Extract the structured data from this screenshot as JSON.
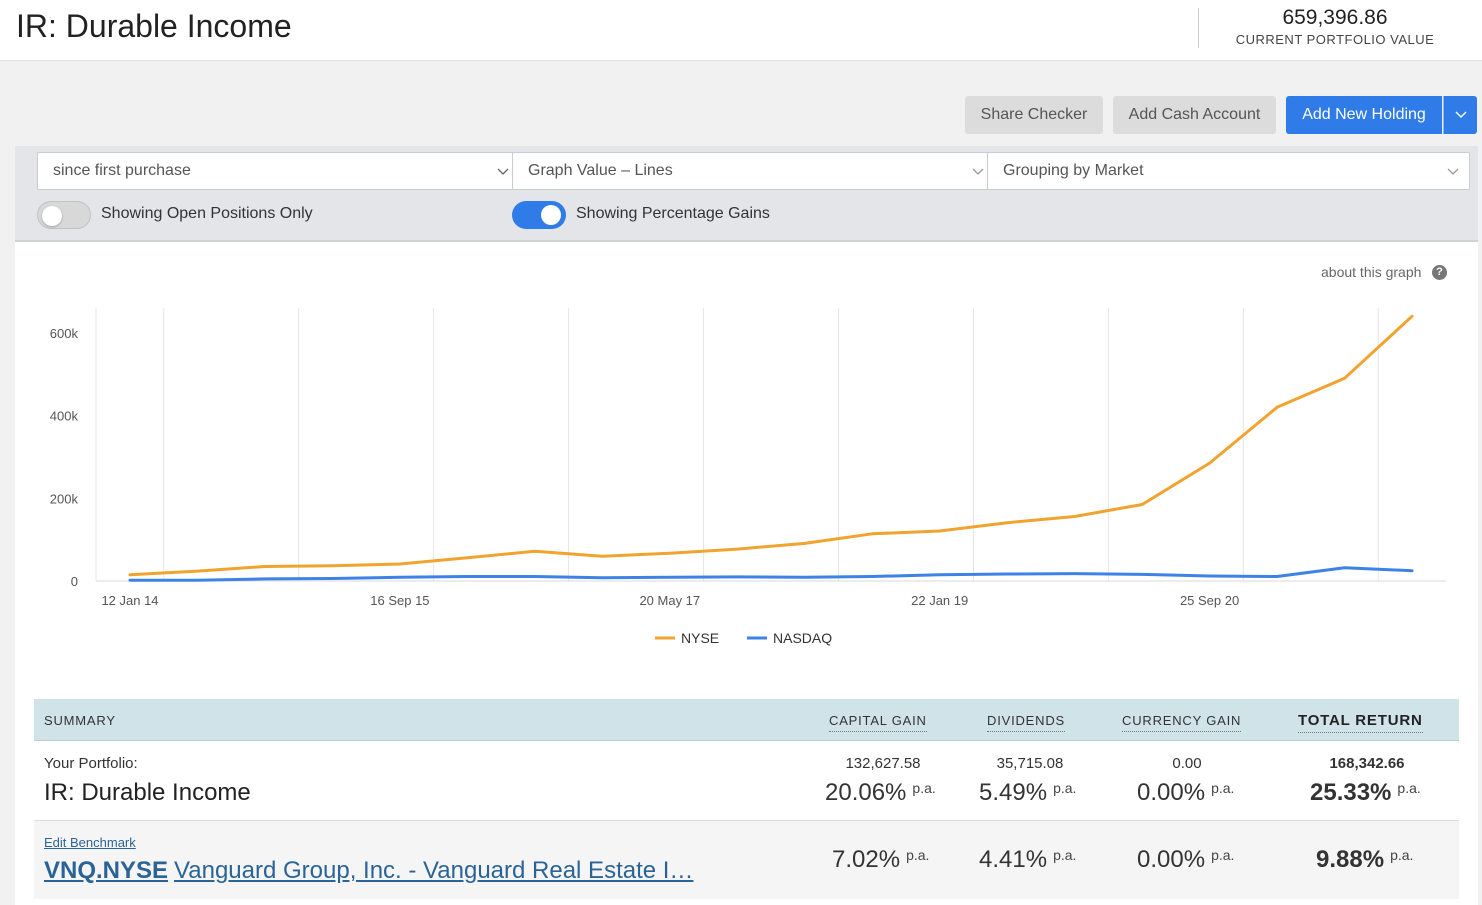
{
  "header": {
    "title": "IR: Durable Income",
    "portfolio_value": "659,396.86",
    "portfolio_value_label": "CURRENT PORTFOLIO VALUE"
  },
  "actions": {
    "share_checker": "Share Checker",
    "add_cash_account": "Add Cash Account",
    "add_new_holding": "Add New Holding"
  },
  "filters": {
    "period": "since first purchase",
    "graph_type": "Graph Value – Lines",
    "grouping": "Grouping by Market",
    "open_positions_label": "Showing Open Positions Only",
    "open_positions_on": false,
    "percentage_gains_label": "Showing Percentage Gains",
    "percentage_gains_on": true
  },
  "graph": {
    "about_label": "about this graph",
    "help_glyph": "?"
  },
  "chart_data": {
    "type": "line",
    "x_ticks": [
      "12 Jan 14",
      "16 Sep 15",
      "20 May 17",
      "22 Jan 19",
      "25 Sep 20"
    ],
    "y_ticks": [
      "0",
      "200k",
      "400k",
      "600k"
    ],
    "ylim": [
      0,
      660000
    ],
    "x_count": 20,
    "legend_position": "bottom-center",
    "grid": true,
    "series": [
      {
        "name": "NYSE",
        "color": "#f0a32f",
        "values": [
          15000,
          24000,
          35000,
          37000,
          41000,
          56000,
          72000,
          60000,
          67000,
          77000,
          91000,
          114000,
          121000,
          141000,
          156000,
          185000,
          285000,
          420000,
          490000,
          640000
        ]
      },
      {
        "name": "NASDAQ",
        "color": "#3d82e6",
        "values": [
          2000,
          2000,
          5000,
          6000,
          9000,
          11000,
          11000,
          8000,
          9000,
          10000,
          9000,
          11000,
          15000,
          17000,
          18000,
          16000,
          12000,
          11000,
          32000,
          25000
        ]
      }
    ]
  },
  "summary": {
    "headers": {
      "summary": "SUMMARY",
      "capital_gain": "CAPITAL GAIN",
      "dividends": "DIVIDENDS",
      "currency_gain": "CURRENCY GAIN",
      "total_return": "TOTAL RETURN"
    },
    "portfolio": {
      "label": "Your Portfolio:",
      "name": "IR: Durable Income",
      "capital_gain": "132,627.58",
      "capital_gain_pct": "20.06%",
      "dividends": "35,715.08",
      "dividends_pct": "5.49%",
      "currency_gain": "0.00",
      "currency_gain_pct": "0.00%",
      "total_return": "168,342.66",
      "total_return_pct": "25.33%"
    },
    "benchmark": {
      "edit_label": "Edit Benchmark",
      "code": "VNQ.NYSE",
      "name": "Vanguard Group, Inc. - Vanguard Real Estate I…",
      "capital_gain_pct": "7.02%",
      "dividends_pct": "4.41%",
      "currency_gain_pct": "0.00%",
      "total_return_pct": "9.88%"
    },
    "pa_suffix": "p.a."
  }
}
